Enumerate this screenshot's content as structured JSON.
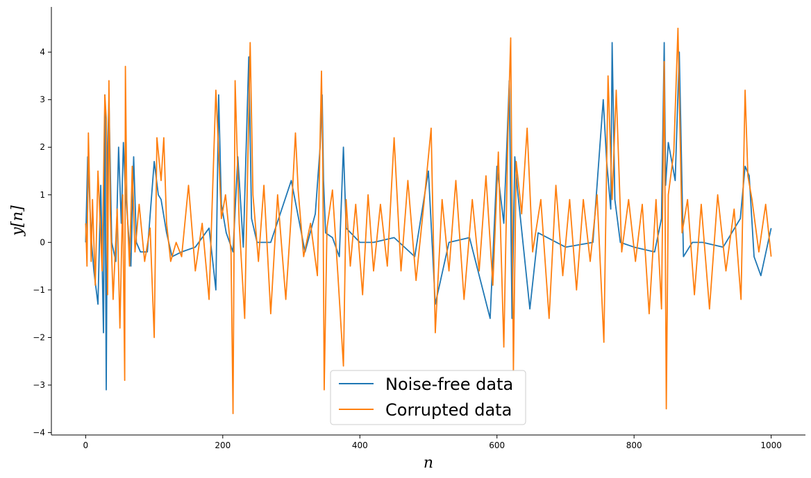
{
  "chart_data": {
    "type": "line",
    "title": "",
    "xlabel": "n",
    "ylabel": "y[n]",
    "xlim": [
      -50,
      1050
    ],
    "ylim": [
      -4.05,
      4.95
    ],
    "xticks": [
      0,
      200,
      400,
      600,
      800,
      1000
    ],
    "yticks": [
      -4,
      -3,
      -2,
      -1,
      0,
      1,
      2,
      3,
      4
    ],
    "xtick_labels": [
      "0",
      "200",
      "400",
      "600",
      "800",
      "1000"
    ],
    "ytick_labels": [
      "−4",
      "−3",
      "−2",
      "−1",
      "0",
      "1",
      "2",
      "3",
      "4"
    ],
    "grid": false,
    "legend_placement": "bottom-center",
    "n_points": 1000,
    "series": [
      {
        "name": "Noise-free data",
        "color": "#1f77b4",
        "x": [
          0,
          3,
          5,
          8,
          12,
          18,
          22,
          26,
          28,
          30,
          32,
          34,
          38,
          44,
          48,
          52,
          55,
          58,
          62,
          66,
          70,
          74,
          80,
          90,
          100,
          106,
          110,
          118,
          126,
          140,
          160,
          180,
          190,
          194,
          198,
          205,
          215,
          222,
          230,
          238,
          242,
          250,
          270,
          300,
          320,
          335,
          342,
          345,
          347,
          350,
          360,
          370,
          376,
          380,
          400,
          420,
          450,
          480,
          500,
          510,
          530,
          560,
          590,
          600,
          610,
          618,
          622,
          626,
          630,
          648,
          660,
          700,
          740,
          755,
          760,
          766,
          768,
          772,
          780,
          800,
          830,
          840,
          844,
          846,
          850,
          860,
          866,
          872,
          885,
          900,
          930,
          955,
          962,
          968,
          975,
          985,
          1000
        ],
        "values": [
          0.0,
          1.8,
          1.2,
          0.1,
          -0.6,
          -1.3,
          1.2,
          -1.9,
          3.1,
          -3.1,
          2.0,
          3.0,
          0.0,
          -0.4,
          2.0,
          0.4,
          2.1,
          1.1,
          0.3,
          -0.5,
          1.8,
          0.0,
          -0.2,
          -0.2,
          1.7,
          1.0,
          0.9,
          0.2,
          -0.3,
          -0.2,
          -0.1,
          0.3,
          -1.0,
          3.1,
          0.8,
          0.2,
          -0.2,
          1.8,
          -0.1,
          3.9,
          0.5,
          0.0,
          0.0,
          1.3,
          -0.2,
          0.6,
          2.0,
          3.1,
          1.3,
          0.2,
          0.1,
          -0.3,
          2.0,
          0.3,
          0.0,
          0.0,
          0.1,
          -0.3,
          1.5,
          -1.3,
          0.0,
          0.1,
          -1.6,
          1.6,
          0.4,
          3.4,
          -1.6,
          1.8,
          1.1,
          -1.4,
          0.2,
          -0.1,
          0.0,
          3.0,
          1.7,
          0.7,
          4.2,
          0.9,
          0.0,
          -0.1,
          -0.2,
          0.5,
          4.2,
          1.2,
          2.1,
          1.3,
          4.0,
          -0.3,
          0.0,
          0.0,
          -0.1,
          0.5,
          1.6,
          1.4,
          -0.3,
          -0.7,
          0.3
        ]
      },
      {
        "name": "Corrupted data",
        "color": "#ff7f0e",
        "x": [
          0,
          2,
          4,
          6,
          8,
          10,
          14,
          18,
          24,
          28,
          30,
          32,
          34,
          36,
          40,
          46,
          50,
          54,
          57,
          58,
          60,
          64,
          68,
          72,
          78,
          86,
          94,
          100,
          104,
          110,
          114,
          118,
          124,
          132,
          140,
          150,
          160,
          170,
          180,
          190,
          194,
          198,
          204,
          212,
          215,
          218,
          224,
          232,
          240,
          244,
          252,
          260,
          270,
          280,
          292,
          300,
          306,
          310,
          318,
          328,
          338,
          344,
          346,
          348,
          352,
          360,
          368,
          376,
          380,
          386,
          394,
          404,
          412,
          420,
          430,
          440,
          450,
          460,
          470,
          482,
          494,
          504,
          510,
          520,
          530,
          540,
          552,
          564,
          574,
          584,
          594,
          602,
          610,
          616,
          620,
          624,
          628,
          636,
          644,
          652,
          664,
          676,
          686,
          696,
          706,
          716,
          726,
          736,
          746,
          756,
          762,
          768,
          774,
          782,
          792,
          802,
          812,
          822,
          832,
          840,
          844,
          847,
          850,
          858,
          864,
          870,
          878,
          888,
          898,
          910,
          922,
          934,
          946,
          956,
          962,
          966,
          972,
          982,
          992,
          1000
        ],
        "values": [
          0.4,
          -0.5,
          2.3,
          1.0,
          -0.4,
          0.9,
          -0.9,
          1.5,
          -0.6,
          3.1,
          2.6,
          -1.1,
          3.4,
          0.6,
          -1.2,
          0.7,
          -1.8,
          1.0,
          -2.9,
          3.7,
          0.9,
          -0.5,
          1.6,
          -0.2,
          0.8,
          -0.4,
          0.3,
          -2.0,
          2.2,
          1.3,
          2.2,
          0.4,
          -0.4,
          0.0,
          -0.3,
          1.2,
          -0.6,
          0.4,
          -1.2,
          3.2,
          1.9,
          0.5,
          1.0,
          -0.2,
          -3.6,
          3.4,
          0.4,
          -1.6,
          4.2,
          1.0,
          -0.4,
          1.2,
          -1.5,
          1.0,
          -1.2,
          0.6,
          2.3,
          1.1,
          -0.3,
          0.4,
          -0.7,
          3.6,
          1.5,
          -3.1,
          0.3,
          1.1,
          -0.7,
          -2.6,
          0.9,
          -0.5,
          0.8,
          -1.1,
          1.0,
          -0.6,
          0.8,
          -0.5,
          2.2,
          -0.6,
          1.3,
          -0.8,
          0.9,
          2.4,
          -1.9,
          0.9,
          -0.6,
          1.3,
          -1.2,
          0.9,
          -0.6,
          1.4,
          -0.9,
          1.9,
          -2.2,
          2.3,
          4.3,
          -2.7,
          1.7,
          0.6,
          2.4,
          -0.2,
          0.9,
          -1.6,
          1.2,
          -0.7,
          0.9,
          -1.0,
          0.9,
          -0.4,
          1.0,
          -2.1,
          3.5,
          0.9,
          3.2,
          -0.2,
          0.9,
          -0.4,
          0.8,
          -1.5,
          0.9,
          -1.4,
          3.8,
          -3.5,
          1.0,
          1.9,
          4.5,
          0.2,
          0.9,
          -1.1,
          0.8,
          -1.4,
          1.0,
          -0.6,
          0.7,
          -1.2,
          3.2,
          1.4,
          0.9,
          -0.2,
          0.8,
          -0.3
        ]
      }
    ]
  }
}
